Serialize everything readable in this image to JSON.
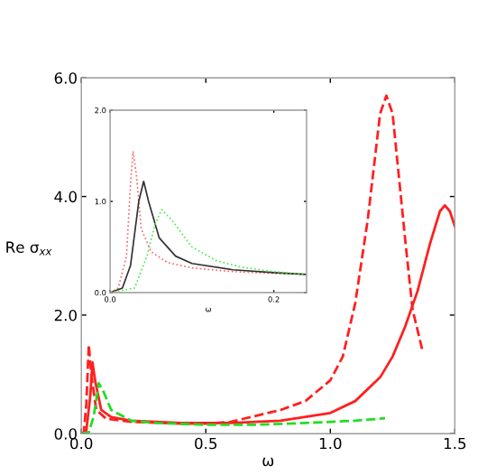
{
  "chart_data": [
    {
      "type": "line",
      "xlabel": "ω",
      "ylabel": "Re σ$_{xx}$",
      "xlim": [
        0,
        1.5
      ],
      "ylim": [
        0,
        6
      ],
      "xticks": [
        {
          "value": 0,
          "label": "0.0"
        },
        0.5,
        {
          "value": 1,
          "label": "1.0"
        },
        1.5
      ],
      "yticks": [
        {
          "value": 0,
          "label": "0.0"
        },
        {
          "value": 2,
          "label": "2.0"
        },
        {
          "value": 4,
          "label": "4.0"
        },
        {
          "value": 6,
          "label": "6.0"
        }
      ],
      "grid": false,
      "legend": false,
      "series": [
        {
          "color": "#ff2020",
          "line_style": "dashed",
          "x": [
            0,
            0.01,
            0.02,
            0.03,
            0.04,
            0.06,
            0.1,
            0.2,
            0.4,
            0.5,
            0.6,
            0.7,
            0.8,
            0.9,
            1.0,
            1.05,
            1.1,
            1.15,
            1.2,
            1.225,
            1.25,
            1.3,
            1.33,
            1.37
          ],
          "values": [
            0,
            0.02,
            0.5,
            1.5,
            1.0,
            0.4,
            0.25,
            0.2,
            0.17,
            0.17,
            0.2,
            0.3,
            0.4,
            0.55,
            0.9,
            1.3,
            2.2,
            3.6,
            5.4,
            5.7,
            5.4,
            3.3,
            2.1,
            1.4
          ]
        },
        {
          "color": "#ff2020",
          "line_style": "solid",
          "x": [
            0,
            0.02,
            0.035,
            0.045,
            0.055,
            0.08,
            0.12,
            0.2,
            0.4,
            0.6,
            0.8,
            1.0,
            1.1,
            1.2,
            1.25,
            1.3,
            1.35,
            1.4,
            1.44,
            1.46,
            1.48,
            1.5
          ],
          "values": [
            0,
            0.05,
            0.6,
            1.2,
            0.9,
            0.4,
            0.28,
            0.22,
            0.18,
            0.18,
            0.22,
            0.35,
            0.55,
            0.95,
            1.3,
            1.8,
            2.4,
            3.2,
            3.75,
            3.85,
            3.75,
            3.5
          ]
        },
        {
          "color": "#22dd22",
          "line_style": "dashed",
          "x": [
            0,
            0.03,
            0.05,
            0.07,
            0.09,
            0.12,
            0.2,
            0.3,
            0.5,
            0.7,
            0.9,
            1.1,
            1.22
          ],
          "values": [
            0,
            0.02,
            0.3,
            0.85,
            0.7,
            0.4,
            0.22,
            0.18,
            0.15,
            0.15,
            0.18,
            0.22,
            0.26
          ]
        }
      ]
    },
    {
      "type": "line",
      "xlabel": "ω",
      "xlim": [
        0,
        0.24
      ],
      "ylim": [
        0,
        2
      ],
      "xticks": [
        {
          "value": 0,
          "label": "0.0"
        },
        {
          "value": 0.2,
          "label": "0.2"
        }
      ],
      "yticks": [
        {
          "value": 0,
          "label": "0.0"
        },
        {
          "value": 1,
          "label": "1.0"
        },
        {
          "value": 2,
          "label": "2.0"
        }
      ],
      "grid": false,
      "legend": false,
      "series": [
        {
          "color": "#ff6060",
          "line_style": "dotted",
          "x": [
            0,
            0.01,
            0.02,
            0.025,
            0.028,
            0.032,
            0.038,
            0.05,
            0.07,
            0.1,
            0.15,
            0.2,
            0.24
          ],
          "values": [
            0,
            0.05,
            0.4,
            1.2,
            1.55,
            1.3,
            0.7,
            0.45,
            0.33,
            0.27,
            0.23,
            0.21,
            0.2
          ]
        },
        {
          "color": "#303030",
          "line_style": "solid",
          "x": [
            0,
            0.015,
            0.025,
            0.035,
            0.041,
            0.047,
            0.06,
            0.08,
            0.1,
            0.15,
            0.2,
            0.24
          ],
          "values": [
            0,
            0.05,
            0.3,
            1.0,
            1.22,
            1.0,
            0.6,
            0.4,
            0.32,
            0.25,
            0.22,
            0.2
          ]
        },
        {
          "color": "#44ee44",
          "line_style": "dotted",
          "x": [
            0,
            0.03,
            0.045,
            0.055,
            0.063,
            0.075,
            0.1,
            0.13,
            0.16,
            0.2,
            0.24
          ],
          "values": [
            0,
            0.05,
            0.4,
            0.75,
            0.91,
            0.8,
            0.5,
            0.35,
            0.28,
            0.23,
            0.2
          ]
        }
      ]
    }
  ]
}
